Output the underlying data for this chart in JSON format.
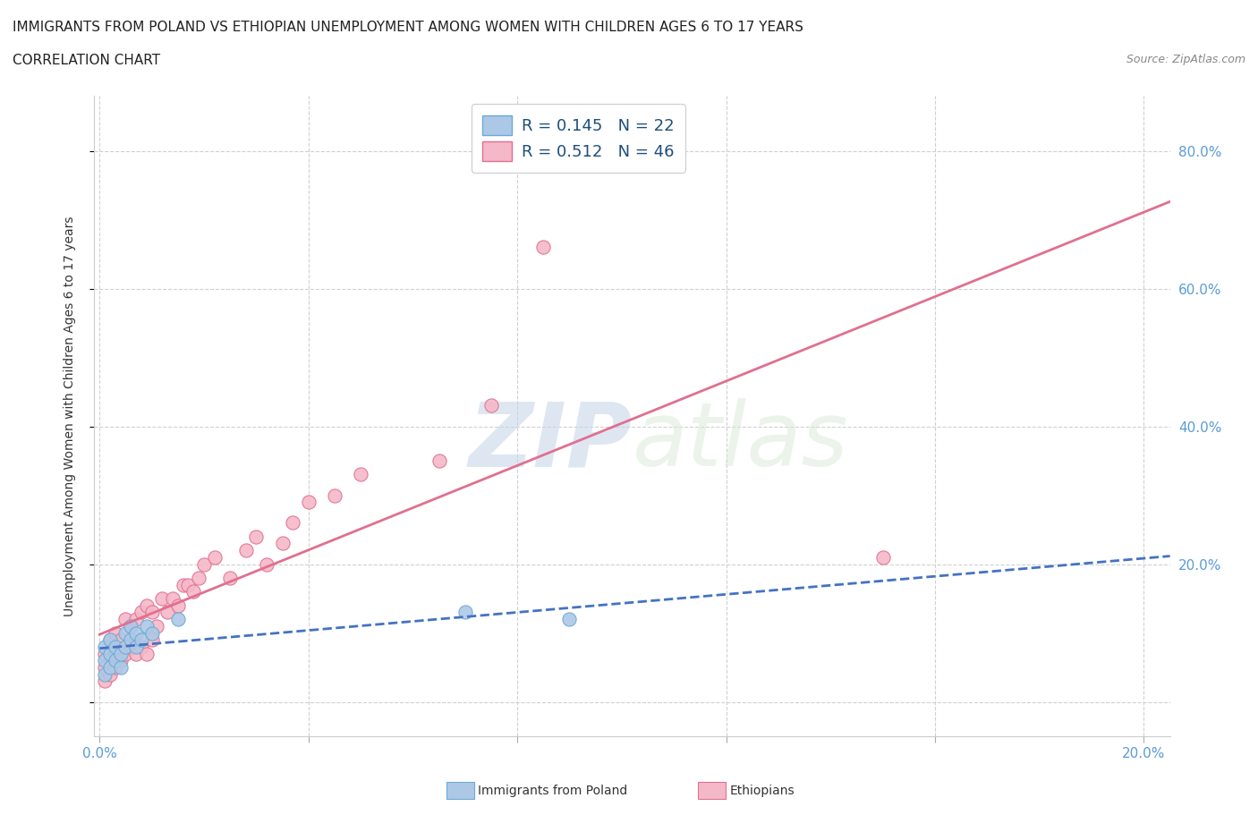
{
  "title_line1": "IMMIGRANTS FROM POLAND VS ETHIOPIAN UNEMPLOYMENT AMONG WOMEN WITH CHILDREN AGES 6 TO 17 YEARS",
  "title_line2": "CORRELATION CHART",
  "source_text": "Source: ZipAtlas.com",
  "ylabel": "Unemployment Among Women with Children Ages 6 to 17 years",
  "xlim": [
    -0.001,
    0.205
  ],
  "ylim": [
    -0.05,
    0.88
  ],
  "poland_color": "#adc8e6",
  "ethiopia_color": "#f5b8c8",
  "poland_edge_color": "#6aaad4",
  "ethiopia_edge_color": "#e07090",
  "poland_line_color": "#4472C4",
  "ethiopia_line_color": "#E07090",
  "R_poland": "0.145",
  "N_poland": "22",
  "R_ethiopia": "0.512",
  "N_ethiopia": "46",
  "watermark_text": "ZIPatlas",
  "legend_label_color": "#1f4e79",
  "poland_x": [
    0.001,
    0.001,
    0.001,
    0.002,
    0.002,
    0.002,
    0.003,
    0.003,
    0.004,
    0.004,
    0.005,
    0.005,
    0.006,
    0.006,
    0.007,
    0.007,
    0.008,
    0.009,
    0.01,
    0.015,
    0.07,
    0.09
  ],
  "poland_y": [
    0.04,
    0.06,
    0.08,
    0.05,
    0.07,
    0.09,
    0.06,
    0.08,
    0.05,
    0.07,
    0.08,
    0.1,
    0.09,
    0.11,
    0.08,
    0.1,
    0.09,
    0.11,
    0.1,
    0.12,
    0.13,
    0.12
  ],
  "ethiopia_x": [
    0.001,
    0.001,
    0.001,
    0.002,
    0.002,
    0.003,
    0.003,
    0.003,
    0.004,
    0.004,
    0.005,
    0.005,
    0.006,
    0.006,
    0.007,
    0.007,
    0.008,
    0.008,
    0.009,
    0.009,
    0.01,
    0.01,
    0.011,
    0.012,
    0.013,
    0.014,
    0.015,
    0.016,
    0.017,
    0.018,
    0.019,
    0.02,
    0.022,
    0.025,
    0.028,
    0.03,
    0.032,
    0.035,
    0.037,
    0.04,
    0.045,
    0.05,
    0.065,
    0.075,
    0.085,
    0.15
  ],
  "ethiopia_y": [
    0.03,
    0.05,
    0.07,
    0.04,
    0.09,
    0.05,
    0.07,
    0.1,
    0.06,
    0.09,
    0.07,
    0.12,
    0.08,
    0.11,
    0.07,
    0.12,
    0.08,
    0.13,
    0.07,
    0.14,
    0.09,
    0.13,
    0.11,
    0.15,
    0.13,
    0.15,
    0.14,
    0.17,
    0.17,
    0.16,
    0.18,
    0.2,
    0.21,
    0.18,
    0.22,
    0.24,
    0.2,
    0.23,
    0.26,
    0.29,
    0.3,
    0.33,
    0.35,
    0.43,
    0.66,
    0.21
  ],
  "bottom_legend_poland": "Immigrants from Poland",
  "bottom_legend_ethiopia": "Ethiopians"
}
